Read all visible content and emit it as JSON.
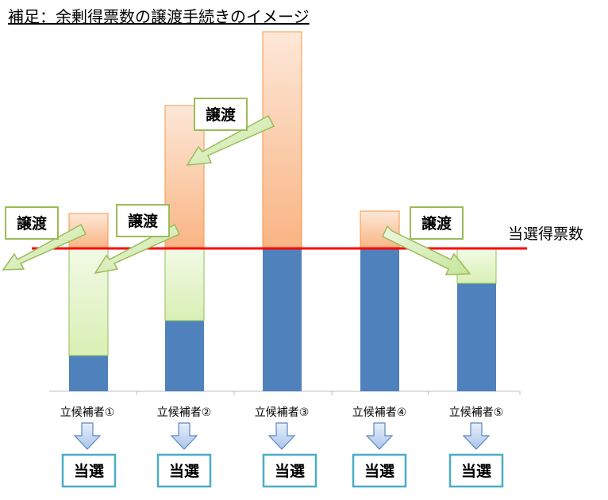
{
  "title": "補足：余剰得票数の譲渡手続きのイメージ",
  "line_label": "当選得票数",
  "transfer_label": "譲渡",
  "elected_label": "当選",
  "colors": {
    "blue": "#4f81bd",
    "red": "#ff0000",
    "green_fill": "#e2f3c6",
    "green_edge": "#8fc254",
    "orange_fill": "#fbbf93",
    "orange_light": "#fde8d8",
    "arrow_blue": "#c6d9f1",
    "arrow_edge": "#5b86bf",
    "box_edge": "#4bacc6",
    "transfer_edge": "#9bbb59"
  },
  "candidates": [
    {
      "label": "立候補者①"
    },
    {
      "label": "立候補者②"
    },
    {
      "label": "立候補者③"
    },
    {
      "label": "立候補者④"
    },
    {
      "label": "立候補者⑤"
    }
  ]
}
